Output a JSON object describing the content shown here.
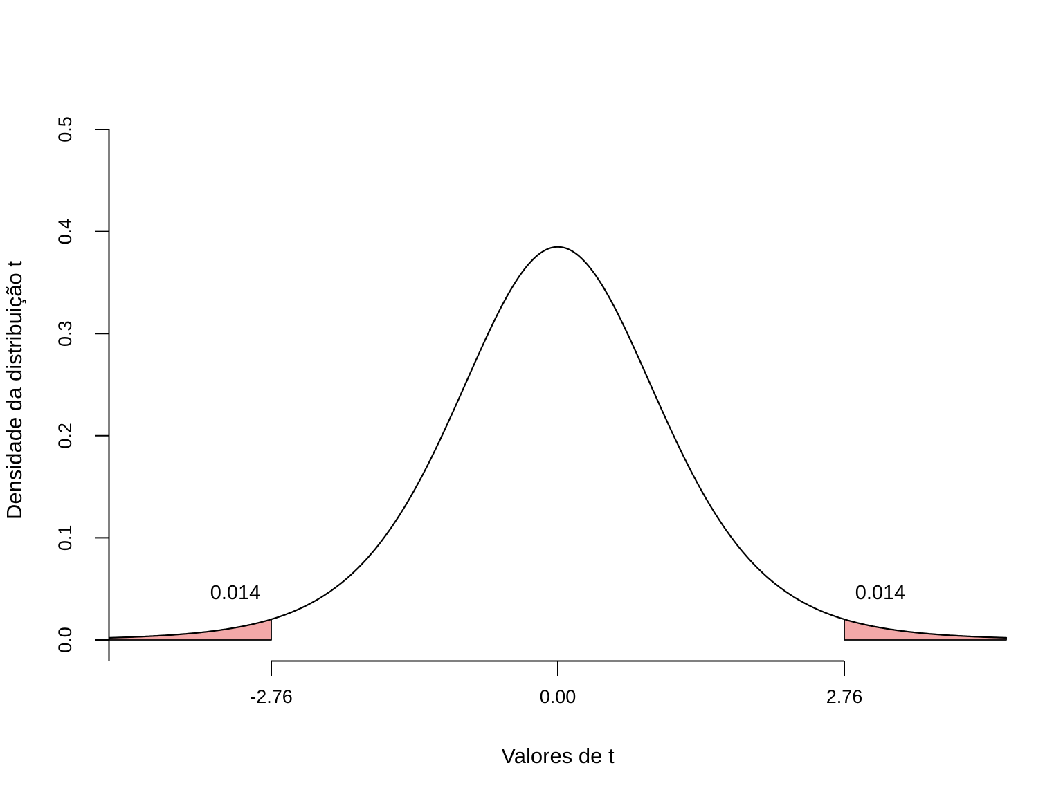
{
  "chart_data": {
    "type": "line",
    "title": "",
    "xlabel": "Valores de t",
    "ylabel": "Densidade da distribuição t",
    "x_ticks": [
      -2.76,
      0,
      2.76
    ],
    "x_tick_labels": [
      "-2.76",
      "0.00",
      "2.76"
    ],
    "y_ticks": [
      0,
      0.1,
      0.2,
      0.3,
      0.4,
      0.5
    ],
    "y_tick_labels": [
      "0.0",
      "0.1",
      "0.2",
      "0.3",
      "0.4",
      "0.5"
    ],
    "x_range": [
      -4.32,
      4.32
    ],
    "y_range": [
      0,
      0.5
    ],
    "grid": false,
    "legend": false,
    "curve": {
      "distribution": "student-t",
      "df": 7,
      "peak_density": 0.385,
      "points_x": [
        -4.32,
        -3.84,
        -3.36,
        -2.88,
        -2.76,
        -2.4,
        -1.92,
        -1.44,
        -0.96,
        -0.48,
        0,
        0.48,
        0.96,
        1.44,
        1.92,
        2.4,
        2.76,
        2.88,
        3.36,
        3.84,
        4.32
      ],
      "points_y": [
        0.0021,
        0.0041,
        0.0083,
        0.0169,
        0.0202,
        0.0348,
        0.0708,
        0.1363,
        0.2347,
        0.3381,
        0.385,
        0.3381,
        0.2347,
        0.1363,
        0.0708,
        0.0348,
        0.0202,
        0.0169,
        0.0083,
        0.0041,
        0.0021
      ]
    },
    "critical_values": [
      -2.76,
      2.76
    ],
    "tail_labels": [
      "0.014",
      "0.014"
    ],
    "colors": {
      "curve": "#000000",
      "axis": "#000000",
      "text": "#000000",
      "tail_fill": "#F3A8A8",
      "background": "#FFFFFF"
    }
  }
}
